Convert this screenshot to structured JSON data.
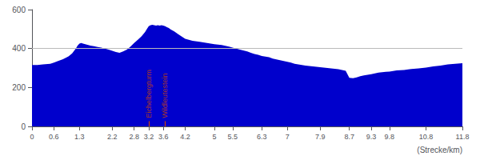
{
  "chart_data": {
    "type": "area",
    "xlabel": "(Strecke/km)",
    "x": [
      0.0,
      0.15,
      0.3,
      0.5,
      0.6,
      0.7,
      0.85,
      1.0,
      1.1,
      1.2,
      1.25,
      1.3,
      1.35,
      1.4,
      1.5,
      1.6,
      1.7,
      1.8,
      1.9,
      2.0,
      2.1,
      2.2,
      2.3,
      2.4,
      2.5,
      2.6,
      2.7,
      2.8,
      2.9,
      3.0,
      3.1,
      3.15,
      3.2,
      3.25,
      3.3,
      3.35,
      3.4,
      3.45,
      3.5,
      3.55,
      3.6,
      3.65,
      3.7,
      3.75,
      3.8,
      3.9,
      4.0,
      4.1,
      4.2,
      4.4,
      4.6,
      4.8,
      5.0,
      5.2,
      5.4,
      5.5,
      5.7,
      5.9,
      6.0,
      6.1,
      6.2,
      6.3,
      6.5,
      6.6,
      6.8,
      7.0,
      7.1,
      7.2,
      7.3,
      7.4,
      7.5,
      7.6,
      7.7,
      7.8,
      7.9,
      8.0,
      8.1,
      8.2,
      8.3,
      8.4,
      8.5,
      8.6,
      8.7,
      8.8,
      8.9,
      9.0,
      9.1,
      9.2,
      9.3,
      9.4,
      9.5,
      9.6,
      9.7,
      9.8,
      9.9,
      10.0,
      10.2,
      10.4,
      10.6,
      10.8,
      11.0,
      11.2,
      11.4,
      11.6,
      11.8
    ],
    "values": [
      315,
      315,
      318,
      322,
      328,
      335,
      345,
      360,
      375,
      400,
      415,
      425,
      428,
      425,
      420,
      415,
      412,
      408,
      405,
      400,
      395,
      388,
      382,
      378,
      385,
      395,
      410,
      428,
      445,
      462,
      485,
      500,
      515,
      520,
      522,
      520,
      518,
      520,
      518,
      520,
      518,
      515,
      510,
      505,
      498,
      488,
      475,
      462,
      450,
      440,
      435,
      428,
      422,
      418,
      410,
      405,
      395,
      385,
      378,
      372,
      368,
      362,
      355,
      348,
      340,
      332,
      328,
      322,
      318,
      315,
      312,
      310,
      308,
      306,
      304,
      302,
      300,
      298,
      296,
      294,
      290,
      286,
      250,
      248,
      252,
      258,
      262,
      265,
      268,
      272,
      276,
      278,
      280,
      282,
      285,
      288,
      290,
      295,
      298,
      302,
      308,
      312,
      318,
      322,
      325
    ],
    "color": "#0000CC",
    "xlim": [
      0,
      11.8
    ],
    "ylim": [
      0,
      600
    ],
    "xticks": [
      0,
      0.6,
      1.3,
      2.2,
      2.8,
      3.2,
      3.6,
      4.2,
      5,
      5.5,
      6.3,
      7,
      7.9,
      8.7,
      9.3,
      9.8,
      10.8,
      11.8
    ],
    "yticks": [
      0,
      200,
      400,
      600
    ],
    "hline": 400,
    "annotations": [
      {
        "x": 3.2,
        "text": "Eichelbergturm",
        "color": "#cc4400"
      },
      {
        "x": 3.65,
        "text": "Wildleutestein",
        "color": "#cc4400"
      }
    ],
    "grid": false
  }
}
